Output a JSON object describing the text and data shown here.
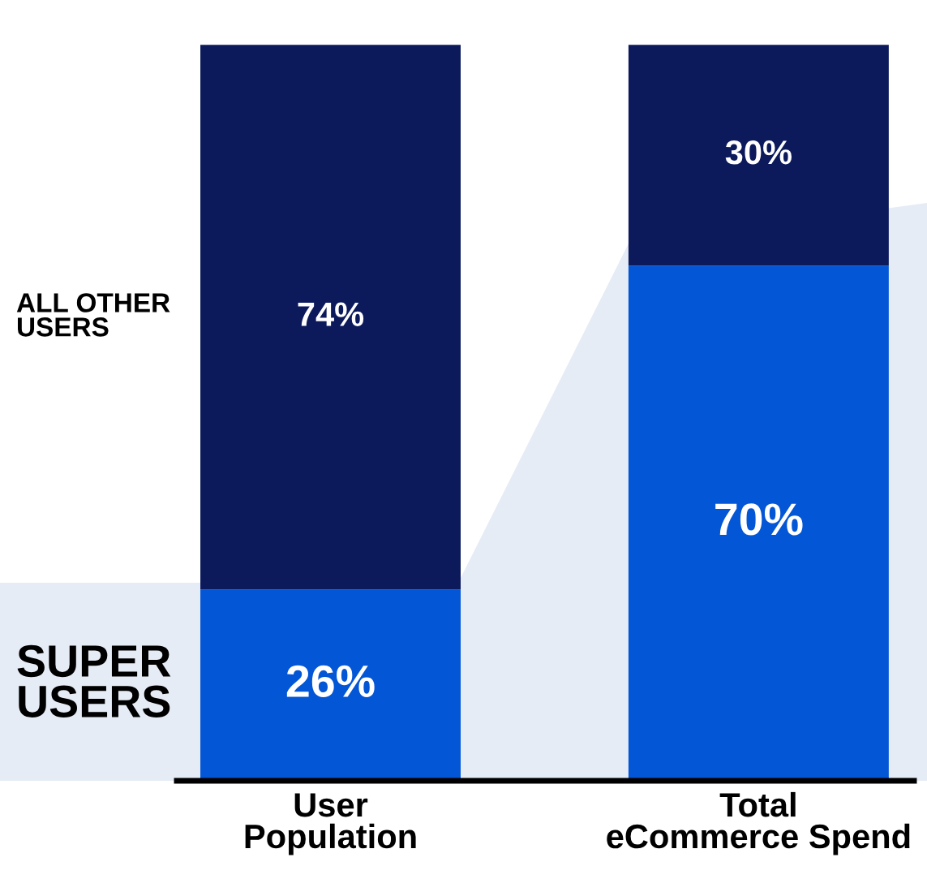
{
  "chart_data": {
    "type": "bar",
    "stacked": true,
    "categories": [
      "User\nPopulation",
      "Total\neCommerce Spend"
    ],
    "series": [
      {
        "name": "SUPER\nUSERS",
        "color": "#0356d6",
        "values": [
          26,
          70
        ],
        "value_labels": [
          "26%",
          "70%"
        ]
      },
      {
        "name": "ALL OTHER\nUSERS",
        "color": "#0c1a5c",
        "values": [
          74,
          30
        ],
        "value_labels": [
          "74%",
          "30%"
        ]
      }
    ],
    "legend": false,
    "grid": false
  }
}
